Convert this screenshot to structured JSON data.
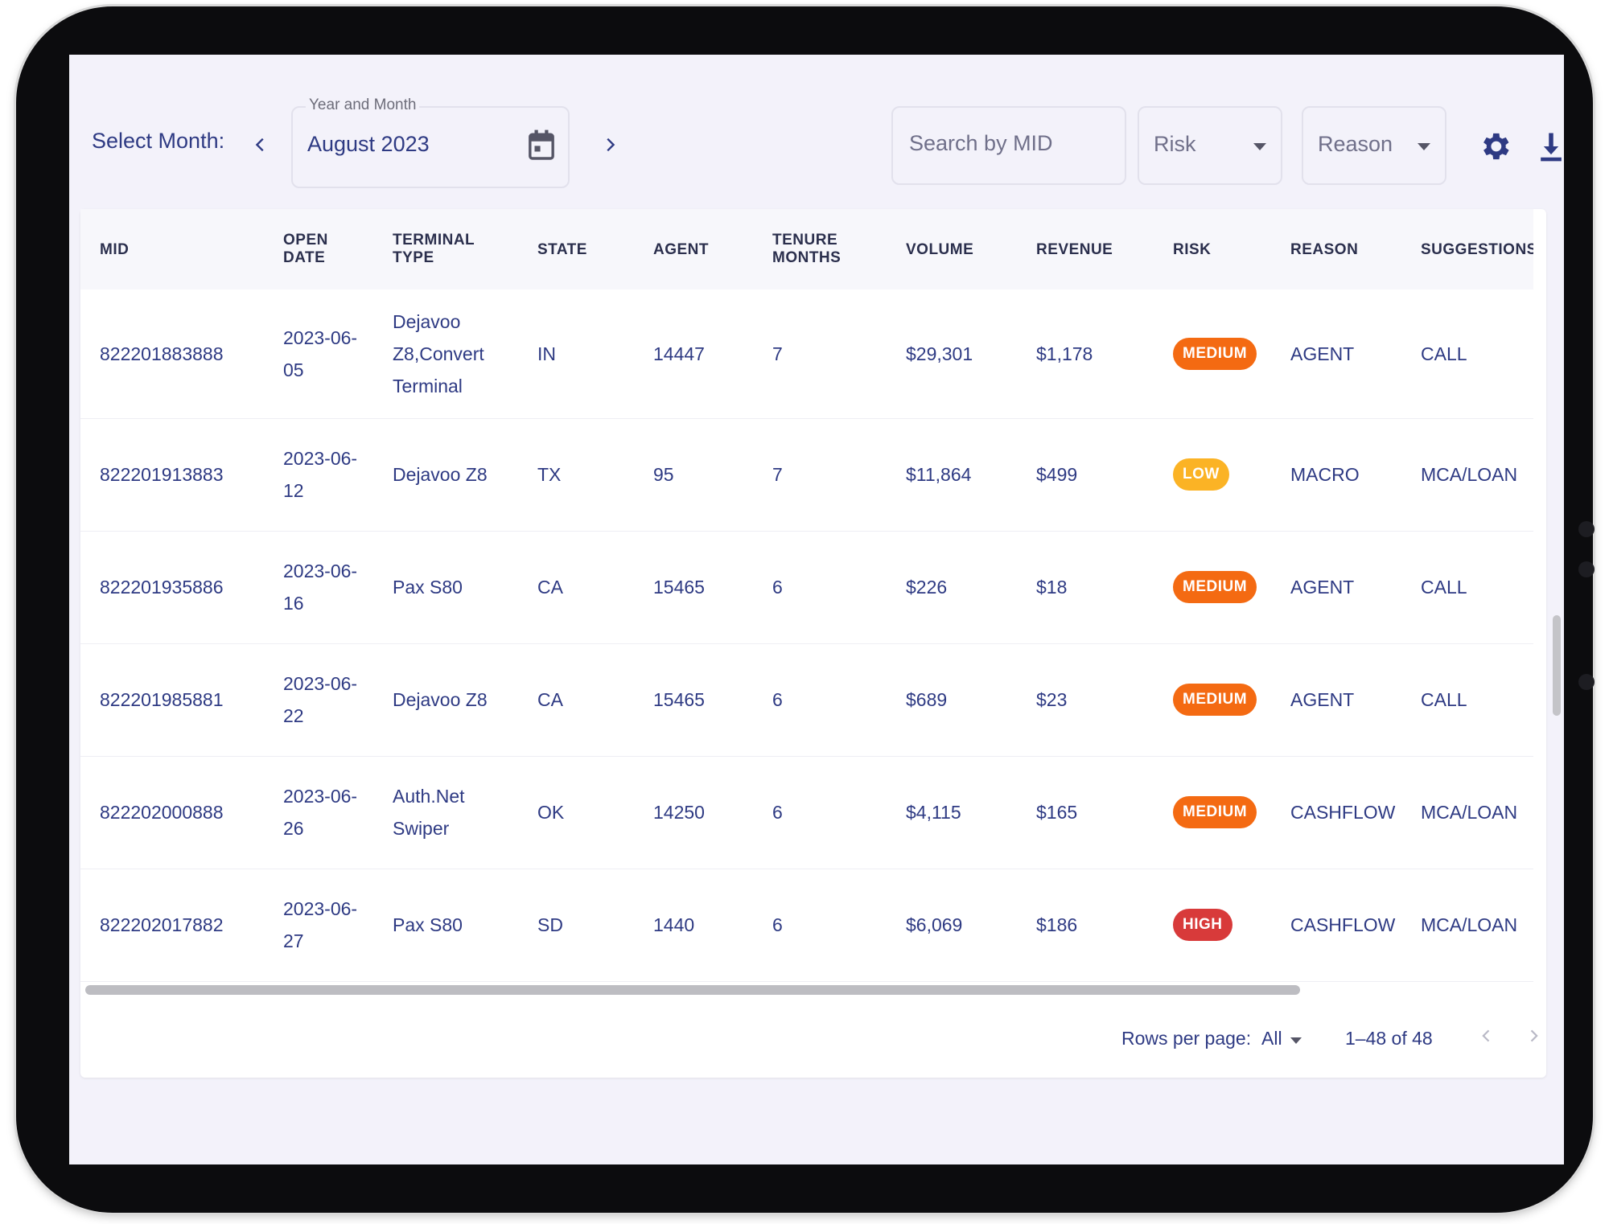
{
  "toolbar": {
    "select_month_label": "Select Month:",
    "date_legend": "Year and Month",
    "date_value": "August 2023",
    "search_placeholder": "Search by MID",
    "risk_label": "Risk",
    "reason_label": "Reason"
  },
  "table": {
    "headers": {
      "mid": "MID",
      "open_date": "OPEN\nDATE",
      "terminal_type": "TERMINAL\nTYPE",
      "state": "STATE",
      "agent": "AGENT",
      "tenure_months": "TENURE\nMONTHS",
      "volume": "VOLUME",
      "revenue": "REVENUE",
      "risk": "RISK",
      "reason": "REASON",
      "suggestions": "SUGGESTIONS"
    },
    "rows": [
      {
        "mid": "822201883888",
        "open_date": "2023-06-\n05",
        "terminal": "Dejavoo\nZ8,Convert\nTerminal",
        "state": "IN",
        "agent": "14447",
        "tenure": "7",
        "volume": "$29,301",
        "revenue": "$1,178",
        "risk": "MEDIUM",
        "reason": "AGENT",
        "suggestion": "CALL"
      },
      {
        "mid": "822201913883",
        "open_date": "2023-06-\n12",
        "terminal": "Dejavoo Z8",
        "state": "TX",
        "agent": "95",
        "tenure": "7",
        "volume": "$11,864",
        "revenue": "$499",
        "risk": "LOW",
        "reason": "MACRO",
        "suggestion": "MCA/LOAN"
      },
      {
        "mid": "822201935886",
        "open_date": "2023-06-\n16",
        "terminal": "Pax S80",
        "state": "CA",
        "agent": "15465",
        "tenure": "6",
        "volume": "$226",
        "revenue": "$18",
        "risk": "MEDIUM",
        "reason": "AGENT",
        "suggestion": "CALL"
      },
      {
        "mid": "822201985881",
        "open_date": "2023-06-\n22",
        "terminal": "Dejavoo Z8",
        "state": "CA",
        "agent": "15465",
        "tenure": "6",
        "volume": "$689",
        "revenue": "$23",
        "risk": "MEDIUM",
        "reason": "AGENT",
        "suggestion": "CALL"
      },
      {
        "mid": "822202000888",
        "open_date": "2023-06-\n26",
        "terminal": "Auth.Net\nSwiper",
        "state": "OK",
        "agent": "14250",
        "tenure": "6",
        "volume": "$4,115",
        "revenue": "$165",
        "risk": "MEDIUM",
        "reason": "CASHFLOW",
        "suggestion": "MCA/LOAN"
      },
      {
        "mid": "822202017882",
        "open_date": "2023-06-\n27",
        "terminal": "Pax S80",
        "state": "SD",
        "agent": "1440",
        "tenure": "6",
        "volume": "$6,069",
        "revenue": "$186",
        "risk": "HIGH",
        "reason": "CASHFLOW",
        "suggestion": "MCA/LOAN"
      }
    ]
  },
  "risk_colors": {
    "MEDIUM": "#f46a12",
    "LOW": "#fbb325",
    "HIGH": "#d83a3a"
  },
  "pagination": {
    "rows_per_page_label": "Rows per page:",
    "rows_per_page_value": "All",
    "range": "1–48 of 48"
  },
  "icons": {
    "prev_month": "chevron-left-icon",
    "next_month": "chevron-right-icon",
    "calendar": "calendar-icon",
    "settings": "gear-icon",
    "download": "download-icon"
  }
}
